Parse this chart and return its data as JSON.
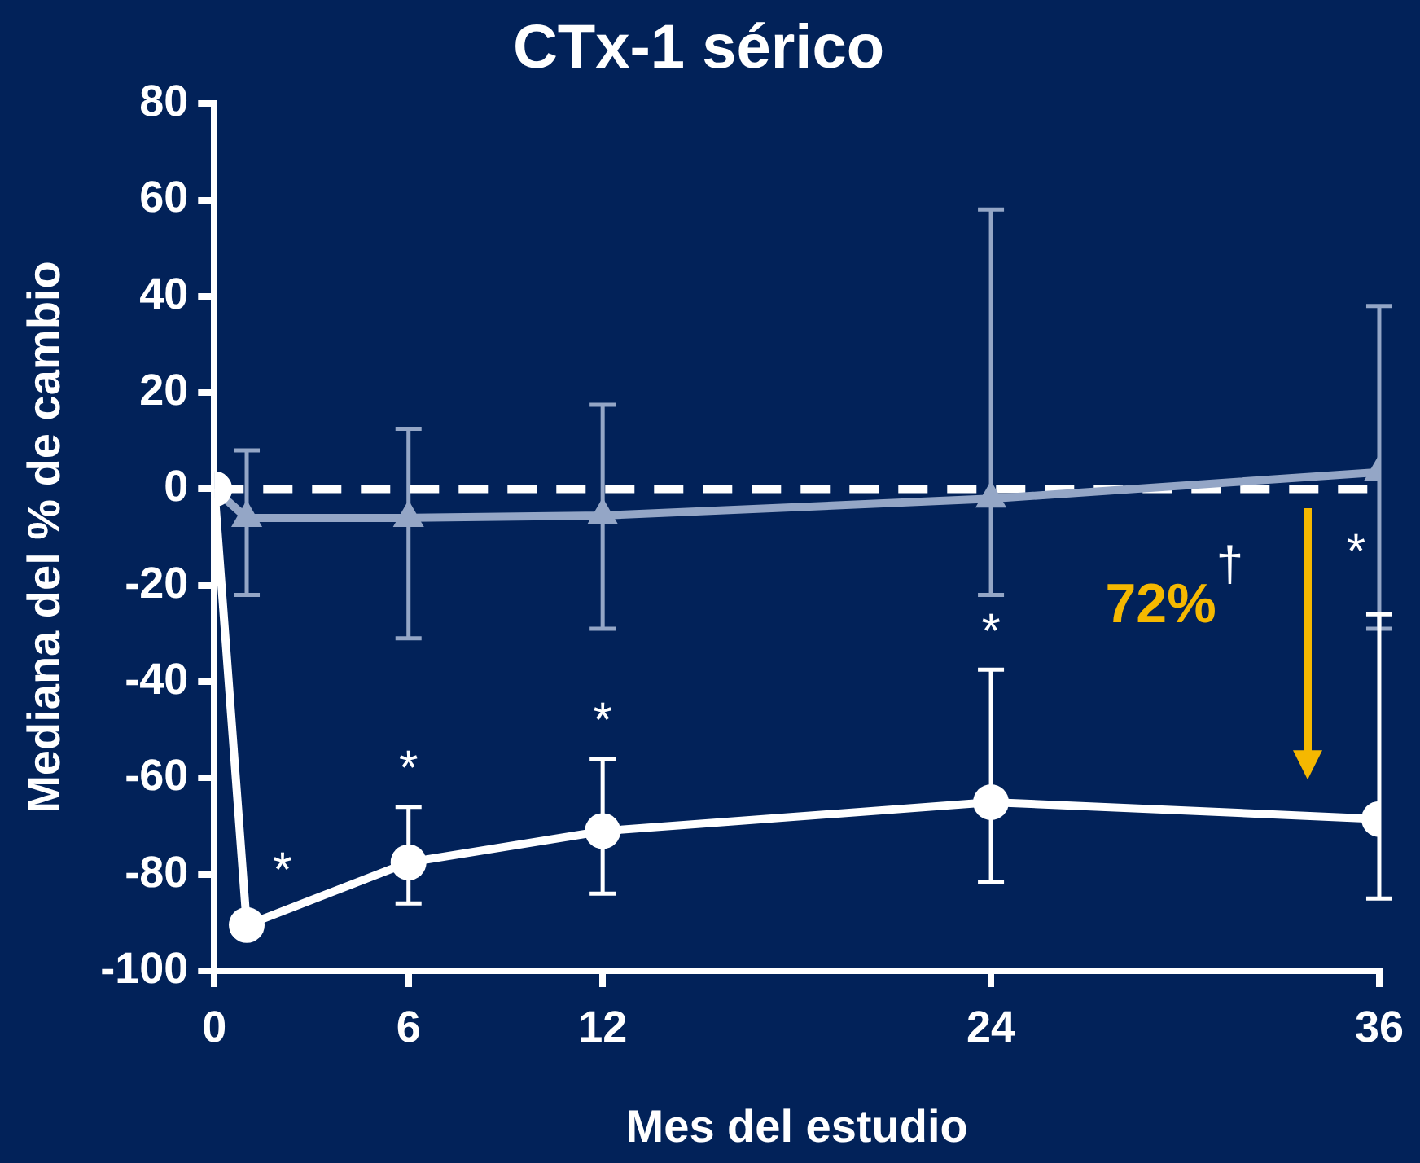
{
  "chart_data": {
    "type": "line",
    "title": "CTx-1 sérico",
    "xlabel": "Mes del estudio",
    "ylabel": "Mediana del % de cambio",
    "x": [
      0,
      1,
      6,
      12,
      24,
      36
    ],
    "series": [
      {
        "color": "#94a6c6",
        "marker": "triangle",
        "values": [
          0,
          -6,
          -6,
          -5.5,
          -2,
          3.5
        ],
        "errors": [
          null,
          [
            -22,
            8
          ],
          [
            -31,
            12.5
          ],
          [
            -29,
            17.5
          ],
          [
            -22,
            58
          ],
          [
            -29,
            38
          ]
        ]
      },
      {
        "color": "#ffffff",
        "marker": "circle",
        "values": [
          0,
          -90.5,
          -77.5,
          -71,
          -65,
          -68.5
        ],
        "errors": [
          null,
          null,
          [
            -86,
            -66
          ],
          [
            -84,
            -56
          ],
          [
            -81.5,
            -37.5
          ],
          [
            -85,
            -26
          ]
        ]
      }
    ],
    "xlim": [
      0,
      36
    ],
    "xticks": [
      0,
      6,
      12,
      24,
      36
    ],
    "ylim": [
      -100,
      80
    ],
    "yticks": [
      -100,
      -80,
      -60,
      -40,
      -20,
      0,
      20,
      40,
      60,
      80
    ],
    "grid": false,
    "legend": false,
    "ref_lines": [
      {
        "axis": "y",
        "value": 0,
        "color": "#ffffff",
        "line_style": "dashed"
      }
    ],
    "annotations": [
      {
        "text": "*",
        "x": 1,
        "y": -90.5
      },
      {
        "text": "*",
        "x": 6,
        "y": -77.5
      },
      {
        "text": "*",
        "x": 12,
        "y": -71
      },
      {
        "text": "*",
        "x": 24,
        "y": -65
      },
      "*",
      "72%$^{†}$"
    ]
  }
}
